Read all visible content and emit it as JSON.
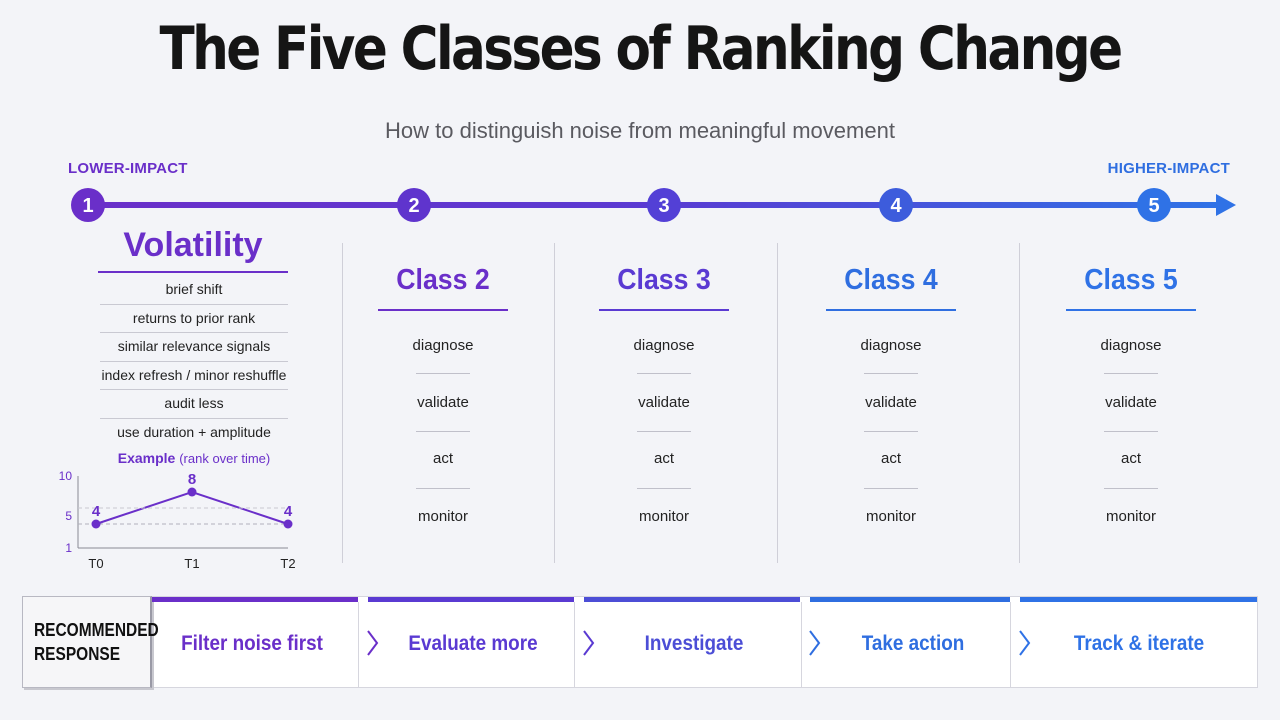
{
  "title": "The Five Classes of Ranking Change",
  "subtitle": "How to distinguish noise from meaningful movement",
  "impact": {
    "low": "LOWER-IMPACT",
    "high": "HIGHER-IMPACT"
  },
  "colors": {
    "purple": "#6a2fc9",
    "violet": "#5a3ad2",
    "indigo": "#4c4ed6",
    "blue": "#2f6ee0",
    "blue_bright": "#2f72e6",
    "text": "#1a1a1a",
    "muted": "#5a5a60"
  },
  "stages": [
    {
      "num": "1"
    },
    {
      "num": "2"
    },
    {
      "num": "3"
    },
    {
      "num": "4"
    },
    {
      "num": "5"
    }
  ],
  "volatility": {
    "title": "Volatility",
    "items": [
      "brief shift",
      "returns to prior rank",
      "similar relevance signals",
      "index refresh / minor reshuffle",
      "audit less",
      "use duration + amplitude"
    ],
    "example_label": "Example",
    "example_sub": "(rank over time)"
  },
  "chart_data": {
    "type": "line",
    "x": [
      "T0",
      "T1",
      "T2"
    ],
    "series": [
      {
        "values": [
          4,
          8,
          4
        ]
      }
    ],
    "data_labels": [
      "4",
      "8",
      "4"
    ],
    "y_ticks": [
      "10",
      "5",
      "1"
    ],
    "ylim": [
      1,
      10
    ],
    "reference_line": 4,
    "grid": false
  },
  "classes": [
    {
      "title": "Class 2",
      "steps": [
        "diagnose",
        "validate",
        "act",
        "monitor"
      ]
    },
    {
      "title": "Class 3",
      "steps": [
        "diagnose",
        "validate",
        "act",
        "monitor"
      ]
    },
    {
      "title": "Class 4",
      "steps": [
        "diagnose",
        "validate",
        "act",
        "monitor"
      ]
    },
    {
      "title": "Class 5",
      "steps": [
        "diagnose",
        "validate",
        "act",
        "monitor"
      ]
    }
  ],
  "response": {
    "label_line1": "RECOMMENDED",
    "label_line2": "RESPONSE",
    "items": [
      "Filter noise first",
      "Evaluate more",
      "Investigate",
      "Take action",
      "Track & iterate"
    ]
  }
}
